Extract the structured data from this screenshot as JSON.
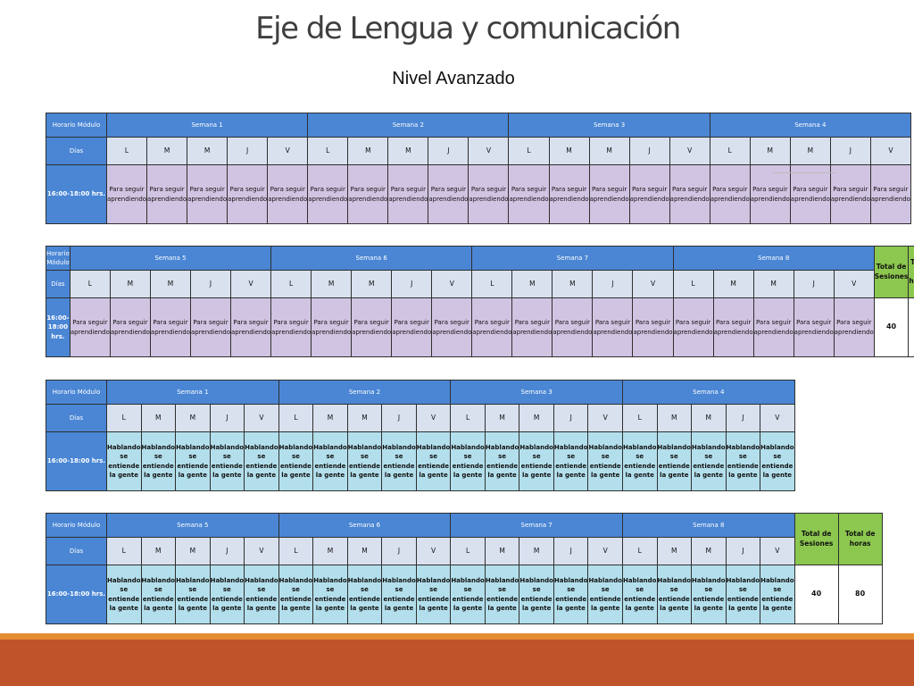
{
  "title": "Eje de Lengua y comunicación",
  "subtitle": "Nivel Avanzado",
  "labels": {
    "horario": "Horario Módulo",
    "dias": "Días",
    "slot": "16:00-18:00 hrs.",
    "total_sesiones": "Total de Sesiones",
    "total_horas": "Total de horas"
  },
  "days": [
    "L",
    "M",
    "M",
    "J",
    "V"
  ],
  "weeks_a": [
    "Semana 1",
    "Semana 2",
    "Semana 3",
    "Semana 4"
  ],
  "weeks_b": [
    "Semana 5",
    "Semana 6",
    "Semana 7",
    "Semana 8"
  ],
  "activities": {
    "para": "Para seguir aprendiendo",
    "hablando": "Hablando se entiende la gente"
  },
  "totals": {
    "sesiones": "40",
    "horas": "80"
  },
  "colors": {
    "header_blue": "#4a86d4",
    "day_row": "#d9e1ef",
    "purple_cell": "#d1c4e2",
    "cyan_cell": "#b3dfec",
    "total_green": "#8cc74f",
    "footer_orange": "#e58d32",
    "footer_rust": "#bf542b"
  }
}
